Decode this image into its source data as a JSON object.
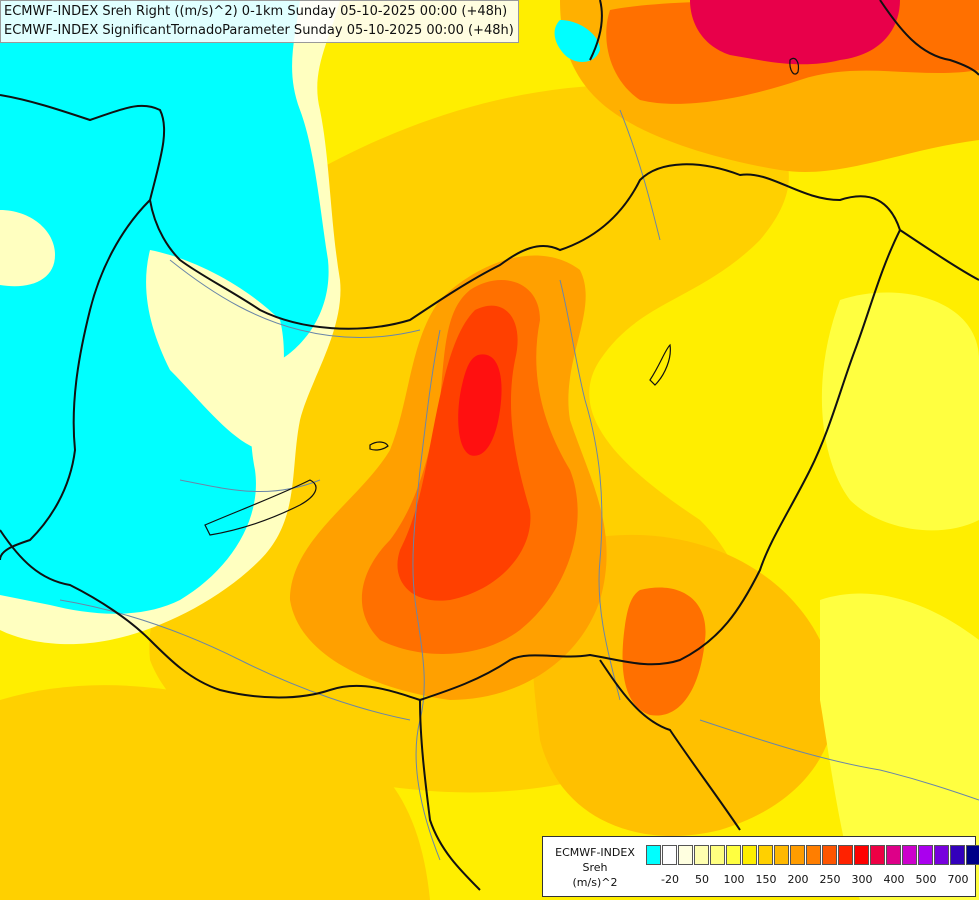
{
  "title": {
    "line1": "ECMWF-INDEX Sreh Right ((m/s)^2) 0-1km Sunday 05-10-2025 00:00 (+48h)",
    "line2": "ECMWF-INDEX SignificantTornadoParameter Sunday 05-10-2025 00:00 (+48h)"
  },
  "legend": {
    "title_line1": "ECMWF-INDEX",
    "title_line2": "Sreh",
    "title_line3": "(m/s)^2",
    "colors": [
      "#00ffff",
      "#ffffff",
      "#ffffe0",
      "#ffffb0",
      "#ffff80",
      "#ffff40",
      "#ffee00",
      "#ffd000",
      "#ffb800",
      "#ff9c00",
      "#ff7e00",
      "#ff5500",
      "#ff2200",
      "#ff0000",
      "#ee0044",
      "#dd0088",
      "#cc00cc",
      "#aa00ee",
      "#7700dd",
      "#3300bb",
      "#000088"
    ],
    "ticks": [
      "-20",
      "50",
      "100",
      "150",
      "200",
      "250",
      "300",
      "400",
      "500",
      "700"
    ]
  },
  "colors": {
    "cyan": "#00ffff",
    "pale": "#ffffc0",
    "yellow": "#ffff40",
    "gold": "#ffd000",
    "orange": "#ffa000",
    "dark_orange": "#ff7000",
    "red_orange": "#ff4000",
    "red": "#ff1010",
    "crimson": "#e8004a"
  }
}
